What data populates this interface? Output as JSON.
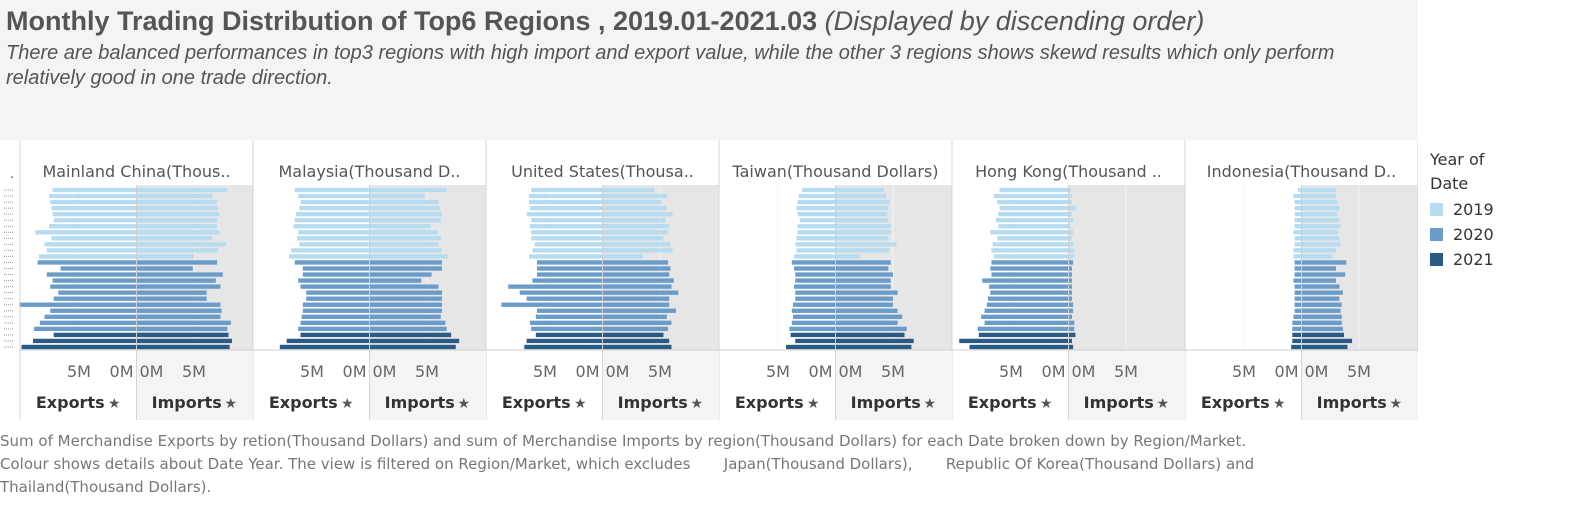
{
  "title": "Monthly Trading Distribution of Top6 Regions , 2019.01-2021.03",
  "title_suffix": "(Displayed by discending order)",
  "subtitle": "There are balanced performances in top3 regions with high import and export value, while the other 3 regions shows skewd results which only perform relatively good in one trade direction.",
  "caption": "Sum of Merchandise Exports by retion(Thousand Dollars) and sum of Merchandise Imports by region(Thousand Dollars) for each Date broken down by Region/Market.\nColour shows details about Date Year. The view is filtered on Region/Market, which excludes       Japan(Thousand Dollars),       Republic Of Korea(Thousand Dollars) and\nThailand(Thousand Dollars).",
  "legend": {
    "title": "Year of Date",
    "items": [
      {
        "label": "2019",
        "color": "#b7dcf0"
      },
      {
        "label": "2020",
        "color": "#6a9cc9"
      },
      {
        "label": "2021",
        "color": "#2c5a87"
      }
    ]
  },
  "chart_data": {
    "type": "bar",
    "orientation": "horizontal",
    "layout": "diverging",
    "row_axis_label": ".",
    "column_labels": {
      "left": "Exports",
      "right": "Imports"
    },
    "tick_labels": {
      "exports": [
        "5M",
        "0M"
      ],
      "imports": [
        "0M",
        "5M"
      ]
    },
    "years": [
      "2019",
      "2019",
      "2019",
      "2019",
      "2019",
      "2019",
      "2019",
      "2019",
      "2019",
      "2019",
      "2019",
      "2019",
      "2020",
      "2020",
      "2020",
      "2020",
      "2020",
      "2020",
      "2020",
      "2020",
      "2020",
      "2020",
      "2020",
      "2020",
      "2021",
      "2021",
      "2021"
    ],
    "panels": [
      {
        "name": "Mainland China(Thous..",
        "exports": [
          7.3,
          7.6,
          7.5,
          7.4,
          7.3,
          7.2,
          7.6,
          8.8,
          7.4,
          8.0,
          7.8,
          8.5,
          8.6,
          6.6,
          7.8,
          7.3,
          7.5,
          6.8,
          7.2,
          10.2,
          7.5,
          8.0,
          8.4,
          8.9,
          7.2,
          9.0,
          10.0
        ],
        "imports": [
          7.9,
          6.6,
          7.0,
          7.1,
          7.2,
          7.0,
          7.0,
          7.2,
          6.6,
          7.8,
          7.1,
          5.0,
          7.0,
          4.9,
          7.5,
          6.9,
          7.3,
          6.1,
          6.1,
          7.3,
          7.4,
          7.3,
          8.2,
          7.9,
          8.0,
          8.3,
          8.1
        ]
      },
      {
        "name": "Malaysia(Thousand D..",
        "exports": [
          6.5,
          6.2,
          6.0,
          6.1,
          6.4,
          6.5,
          6.6,
          6.2,
          6.3,
          6.1,
          6.8,
          7.0,
          6.5,
          5.8,
          5.8,
          6.2,
          6.0,
          5.5,
          5.5,
          5.8,
          5.8,
          5.9,
          6.0,
          6.2,
          6.0,
          7.2,
          7.8
        ],
        "imports": [
          6.7,
          4.8,
          6.0,
          6.1,
          6.3,
          6.2,
          5.3,
          5.9,
          6.2,
          6.0,
          6.3,
          6.8,
          6.3,
          6.3,
          5.4,
          4.5,
          6.0,
          6.3,
          6.3,
          6.3,
          6.3,
          6.2,
          6.6,
          6.7,
          7.1,
          7.8,
          7.5
        ]
      },
      {
        "name": "United States(Thousa..",
        "exports": [
          6.2,
          6.4,
          6.4,
          6.3,
          6.6,
          6.2,
          6.3,
          6.2,
          6.2,
          5.9,
          6.1,
          6.4,
          5.7,
          5.7,
          5.7,
          6.1,
          8.2,
          7.2,
          6.6,
          8.8,
          5.7,
          5.8,
          6.3,
          6.2,
          5.8,
          6.6,
          6.8
        ],
        "imports": [
          4.5,
          5.6,
          5.1,
          5.6,
          6.1,
          5.5,
          5.8,
          5.7,
          5.3,
          5.9,
          6.1,
          3.5,
          5.7,
          5.9,
          5.8,
          6.2,
          6.0,
          6.6,
          5.8,
          5.8,
          6.4,
          5.6,
          6.0,
          5.7,
          5.3,
          5.8,
          6.0
        ]
      },
      {
        "name": "Taiwan(Thousand Dollars)",
        "exports": [
          2.9,
          3.2,
          3.3,
          3.4,
          3.3,
          3.1,
          3.3,
          3.3,
          3.4,
          3.5,
          3.4,
          3.6,
          3.8,
          3.6,
          3.5,
          3.5,
          3.6,
          3.5,
          3.5,
          3.7,
          3.8,
          3.7,
          3.8,
          4.0,
          3.9,
          3.5,
          4.3
        ],
        "imports": [
          4.2,
          4.4,
          4.7,
          4.6,
          4.5,
          4.6,
          4.8,
          4.8,
          4.6,
          5.3,
          4.7,
          2.1,
          4.8,
          4.6,
          5.0,
          4.8,
          4.8,
          5.4,
          5.0,
          5.0,
          5.4,
          5.8,
          5.4,
          6.2,
          6.0,
          6.8,
          6.6
        ]
      },
      {
        "name": "Hong Kong(Thousand ..",
        "exports": [
          6.0,
          6.5,
          6.2,
          6.0,
          6.1,
          6.3,
          6.1,
          6.8,
          6.2,
          6.6,
          6.7,
          6.5,
          6.7,
          6.8,
          6.7,
          7.5,
          6.9,
          6.8,
          7.0,
          7.1,
          7.3,
          7.6,
          7.3,
          7.9,
          7.8,
          9.5,
          8.6
        ],
        "imports": [
          0.2,
          0.3,
          0.3,
          0.6,
          0.3,
          0.4,
          0.2,
          0.4,
          0.3,
          0.4,
          0.5,
          0.5,
          0.4,
          0.3,
          0.3,
          0.3,
          0.3,
          0.3,
          0.3,
          0.4,
          0.4,
          0.3,
          0.5,
          0.5,
          0.6,
          0.3,
          0.4
        ]
      },
      {
        "name": "Indonesia(Thousand D..",
        "exports": [
          0.3,
          0.7,
          0.6,
          0.6,
          0.6,
          0.6,
          0.6,
          0.7,
          0.6,
          0.6,
          0.7,
          0.7,
          0.6,
          0.6,
          0.6,
          0.7,
          0.6,
          0.6,
          0.6,
          0.6,
          0.6,
          0.7,
          0.8,
          0.8,
          0.8,
          0.8,
          0.9
        ],
        "imports": [
          3.0,
          3.0,
          3.1,
          3.3,
          3.1,
          3.3,
          3.4,
          3.2,
          3.3,
          3.4,
          3.0,
          2.7,
          3.9,
          3.0,
          3.8,
          3.0,
          3.3,
          3.6,
          3.3,
          3.5,
          3.4,
          3.5,
          3.5,
          3.6,
          3.7,
          4.4,
          4.0
        ]
      }
    ]
  }
}
